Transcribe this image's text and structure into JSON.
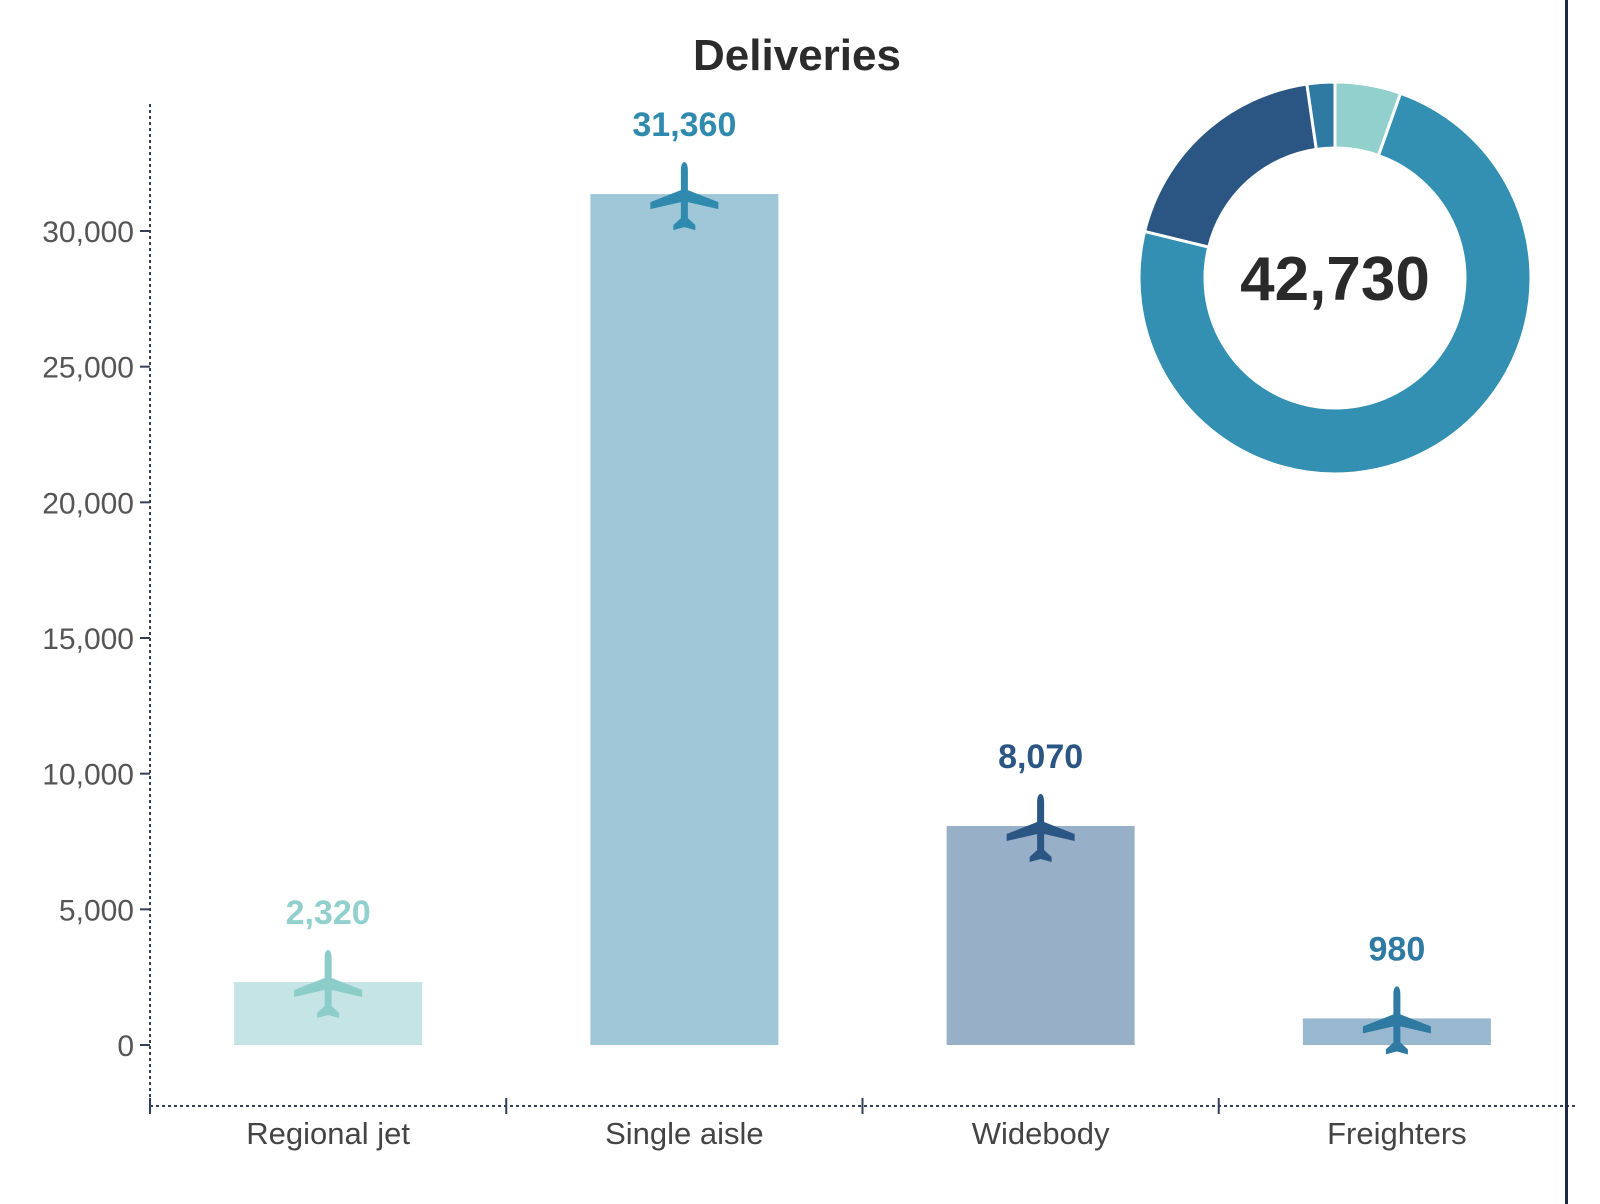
{
  "chart_data": [
    {
      "type": "bar",
      "title": "Deliveries",
      "xlabel": "",
      "ylabel": "",
      "categories": [
        "Regional jet",
        "Single aisle",
        "Widebody",
        "Freighters"
      ],
      "values": [
        2320,
        31360,
        8070,
        980
      ],
      "value_labels": [
        "2,320",
        "31,360",
        "8,070",
        "980"
      ],
      "ylim": [
        -2000,
        34500
      ],
      "yticks": [
        0,
        5000,
        10000,
        15000,
        20000,
        25000,
        30000
      ],
      "ytick_labels": [
        "0",
        "5,000",
        "10,000",
        "15,000",
        "20,000",
        "25,000",
        "30,000"
      ],
      "bar_colors": [
        "#c4e4e6",
        "#9fc7d8",
        "#98afc8",
        "#98b8cf"
      ],
      "label_colors": [
        "#92d0cd",
        "#2f8aae",
        "#2b5683",
        "#2f7aa2"
      ],
      "icon_colors": [
        "#8dcdc9",
        "#2f8aae",
        "#2b5683",
        "#2f7aa2"
      ],
      "icon": "airplane-icon",
      "grid": false
    },
    {
      "type": "pie",
      "variant": "donut",
      "center_label": "42,730",
      "slices": [
        {
          "category": "Regional jet",
          "value": 2320,
          "color": "#92d0cd"
        },
        {
          "category": "Single aisle",
          "value": 31360,
          "color": "#3390b3"
        },
        {
          "category": "Widebody",
          "value": 8070,
          "color": "#2b5683"
        },
        {
          "category": "Freighters",
          "value": 980,
          "color": "#2f7aa2"
        }
      ]
    }
  ]
}
